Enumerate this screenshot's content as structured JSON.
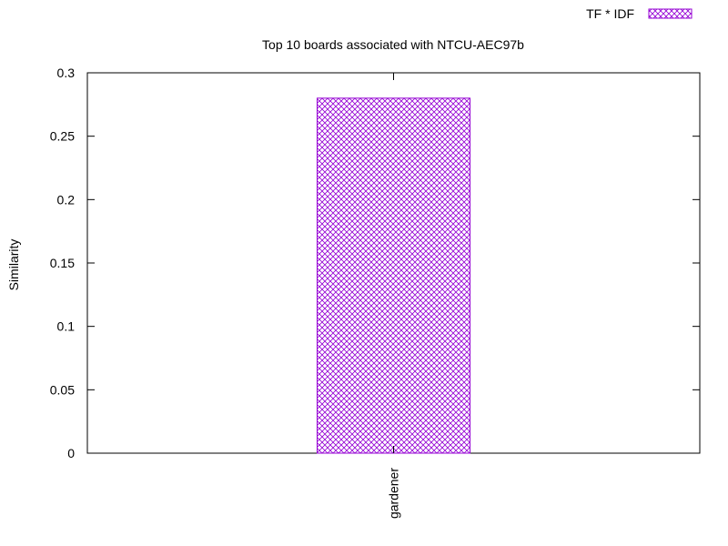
{
  "chart_data": {
    "type": "bar",
    "title": "Top 10 boards associated with NTCU-AEC97b",
    "xlabel": "",
    "ylabel": "Similarity",
    "categories": [
      "gardener"
    ],
    "series": [
      {
        "name": "TF * IDF",
        "values": [
          0.28
        ],
        "color": "#9400d3"
      }
    ],
    "ylim": [
      0,
      0.3
    ],
    "yticks": [
      "0",
      "0.05",
      "0.1",
      "0.15",
      "0.2",
      "0.25",
      "0.3"
    ],
    "ytick_values": [
      0,
      0.05,
      0.1,
      0.15,
      0.2,
      0.25,
      0.3
    ],
    "grid": false,
    "legend_position": "top-right",
    "fill_pattern": "crosshatch"
  }
}
